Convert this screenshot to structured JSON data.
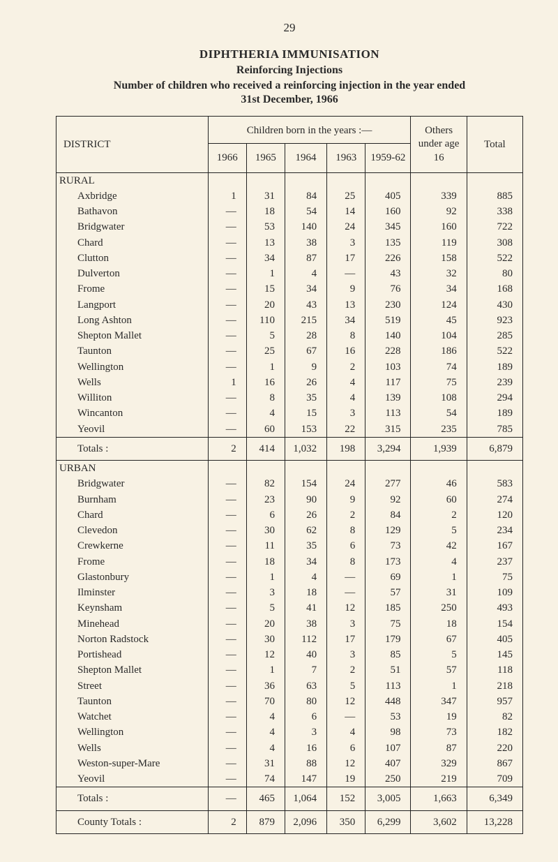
{
  "pageNumber": "29",
  "titles": {
    "t1": "DIPHTHERIA IMMUNISATION",
    "t2": "Reinforcing Injections",
    "t3": "Number of children who received a reinforcing injection in the year ended",
    "t4": "31st December, 1966"
  },
  "headers": {
    "district": "DISTRICT",
    "spanHeader": "Children born in the years :—",
    "y1966": "1966",
    "y1965": "1965",
    "y1964": "1964",
    "y1963": "1963",
    "y1959": "1959-62",
    "others": "Others under age 16",
    "total": "Total"
  },
  "sections": {
    "rural": "RURAL",
    "urban": "URBAN"
  },
  "rural": [
    {
      "name": "Axbridge",
      "c": [
        "1",
        "31",
        "84",
        "25",
        "405",
        "339",
        "885"
      ]
    },
    {
      "name": "Bathavon",
      "c": [
        "—",
        "18",
        "54",
        "14",
        "160",
        "92",
        "338"
      ]
    },
    {
      "name": "Bridgwater",
      "c": [
        "—",
        "53",
        "140",
        "24",
        "345",
        "160",
        "722"
      ]
    },
    {
      "name": "Chard",
      "c": [
        "—",
        "13",
        "38",
        "3",
        "135",
        "119",
        "308"
      ]
    },
    {
      "name": "Clutton",
      "c": [
        "—",
        "34",
        "87",
        "17",
        "226",
        "158",
        "522"
      ]
    },
    {
      "name": "Dulverton",
      "c": [
        "—",
        "1",
        "4",
        "—",
        "43",
        "32",
        "80"
      ]
    },
    {
      "name": "Frome",
      "c": [
        "—",
        "15",
        "34",
        "9",
        "76",
        "34",
        "168"
      ]
    },
    {
      "name": "Langport",
      "c": [
        "—",
        "20",
        "43",
        "13",
        "230",
        "124",
        "430"
      ]
    },
    {
      "name": "Long Ashton",
      "c": [
        "—",
        "110",
        "215",
        "34",
        "519",
        "45",
        "923"
      ]
    },
    {
      "name": "Shepton Mallet",
      "c": [
        "—",
        "5",
        "28",
        "8",
        "140",
        "104",
        "285"
      ]
    },
    {
      "name": "Taunton",
      "c": [
        "—",
        "25",
        "67",
        "16",
        "228",
        "186",
        "522"
      ]
    },
    {
      "name": "Wellington",
      "c": [
        "—",
        "1",
        "9",
        "2",
        "103",
        "74",
        "189"
      ]
    },
    {
      "name": "Wells",
      "c": [
        "1",
        "16",
        "26",
        "4",
        "117",
        "75",
        "239"
      ]
    },
    {
      "name": "Williton",
      "c": [
        "—",
        "8",
        "35",
        "4",
        "139",
        "108",
        "294"
      ]
    },
    {
      "name": "Wincanton",
      "c": [
        "—",
        "4",
        "15",
        "3",
        "113",
        "54",
        "189"
      ]
    },
    {
      "name": "Yeovil",
      "c": [
        "—",
        "60",
        "153",
        "22",
        "315",
        "235",
        "785"
      ]
    }
  ],
  "ruralTotals": {
    "label": "Totals :",
    "c": [
      "2",
      "414",
      "1,032",
      "198",
      "3,294",
      "1,939",
      "6,879"
    ]
  },
  "urban": [
    {
      "name": "Bridgwater",
      "c": [
        "—",
        "82",
        "154",
        "24",
        "277",
        "46",
        "583"
      ]
    },
    {
      "name": "Burnham",
      "c": [
        "—",
        "23",
        "90",
        "9",
        "92",
        "60",
        "274"
      ]
    },
    {
      "name": "Chard",
      "c": [
        "—",
        "6",
        "26",
        "2",
        "84",
        "2",
        "120"
      ]
    },
    {
      "name": "Clevedon",
      "c": [
        "—",
        "30",
        "62",
        "8",
        "129",
        "5",
        "234"
      ]
    },
    {
      "name": "Crewkerne",
      "c": [
        "—",
        "11",
        "35",
        "6",
        "73",
        "42",
        "167"
      ]
    },
    {
      "name": "Frome",
      "c": [
        "—",
        "18",
        "34",
        "8",
        "173",
        "4",
        "237"
      ]
    },
    {
      "name": "Glastonbury",
      "c": [
        "—",
        "1",
        "4",
        "—",
        "69",
        "1",
        "75"
      ]
    },
    {
      "name": "Ilminster",
      "c": [
        "—",
        "3",
        "18",
        "—",
        "57",
        "31",
        "109"
      ]
    },
    {
      "name": "Keynsham",
      "c": [
        "—",
        "5",
        "41",
        "12",
        "185",
        "250",
        "493"
      ]
    },
    {
      "name": "Minehead",
      "c": [
        "—",
        "20",
        "38",
        "3",
        "75",
        "18",
        "154"
      ]
    },
    {
      "name": "Norton Radstock",
      "c": [
        "—",
        "30",
        "112",
        "17",
        "179",
        "67",
        "405"
      ]
    },
    {
      "name": "Portishead",
      "c": [
        "—",
        "12",
        "40",
        "3",
        "85",
        "5",
        "145"
      ]
    },
    {
      "name": "Shepton Mallet",
      "c": [
        "—",
        "1",
        "7",
        "2",
        "51",
        "57",
        "118"
      ]
    },
    {
      "name": "Street",
      "c": [
        "—",
        "36",
        "63",
        "5",
        "113",
        "1",
        "218"
      ]
    },
    {
      "name": "Taunton",
      "c": [
        "—",
        "70",
        "80",
        "12",
        "448",
        "347",
        "957"
      ]
    },
    {
      "name": "Watchet",
      "c": [
        "—",
        "4",
        "6",
        "—",
        "53",
        "19",
        "82"
      ]
    },
    {
      "name": "Wellington",
      "c": [
        "—",
        "4",
        "3",
        "4",
        "98",
        "73",
        "182"
      ]
    },
    {
      "name": "Wells",
      "c": [
        "—",
        "4",
        "16",
        "6",
        "107",
        "87",
        "220"
      ]
    },
    {
      "name": "Weston-super-Mare",
      "c": [
        "—",
        "31",
        "88",
        "12",
        "407",
        "329",
        "867"
      ]
    },
    {
      "name": "Yeovil",
      "c": [
        "—",
        "74",
        "147",
        "19",
        "250",
        "219",
        "709"
      ]
    }
  ],
  "urbanTotals": {
    "label": "Totals :",
    "c": [
      "—",
      "465",
      "1,064",
      "152",
      "3,005",
      "1,663",
      "6,349"
    ]
  },
  "county": {
    "label": "County Totals :",
    "c": [
      "2",
      "879",
      "2,096",
      "350",
      "6,299",
      "3,602",
      "13,228"
    ]
  }
}
